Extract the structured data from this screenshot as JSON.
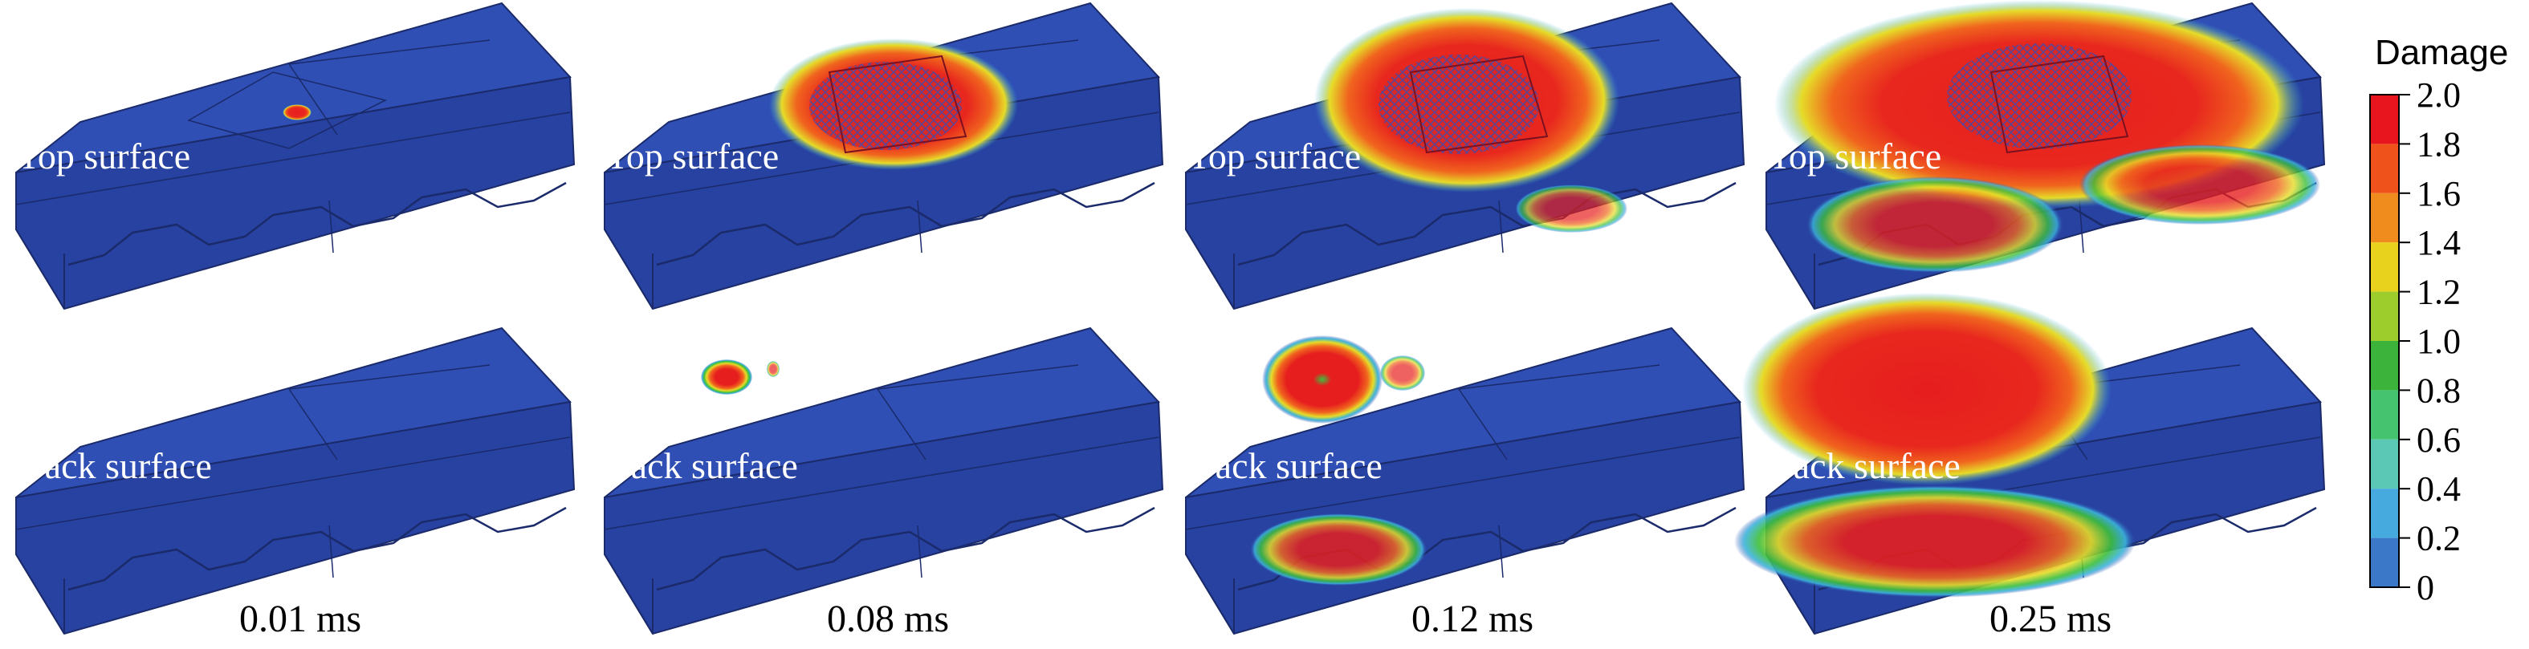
{
  "panels": {
    "top_label": "Top surface",
    "back_label": "Back surface"
  },
  "times": [
    "0.01 ms",
    "0.08 ms",
    "0.12 ms",
    "0.25 ms"
  ],
  "legend": {
    "title": "Damage",
    "ticks": [
      "2.0",
      "1.8",
      "1.6",
      "1.4",
      "1.2",
      "1.0",
      "0.8",
      "0.6",
      "0.4",
      "0.2",
      "0"
    ],
    "colors": [
      "#e8141e",
      "#f0521c",
      "#f08c1e",
      "#e8d21e",
      "#9ccd2c",
      "#3cb43c",
      "#46c36e",
      "#5ac8b4",
      "#46aade",
      "#3c78c8",
      "#2d50b4"
    ]
  },
  "colors": {
    "base_blue": "#2f4fb4",
    "side_blue": "#2742a0",
    "red": "#dc1e1e",
    "orange": "#f0641e",
    "yellow": "#e6dc28",
    "green": "#3cbe3c",
    "cyan": "#3cb4dc"
  }
}
